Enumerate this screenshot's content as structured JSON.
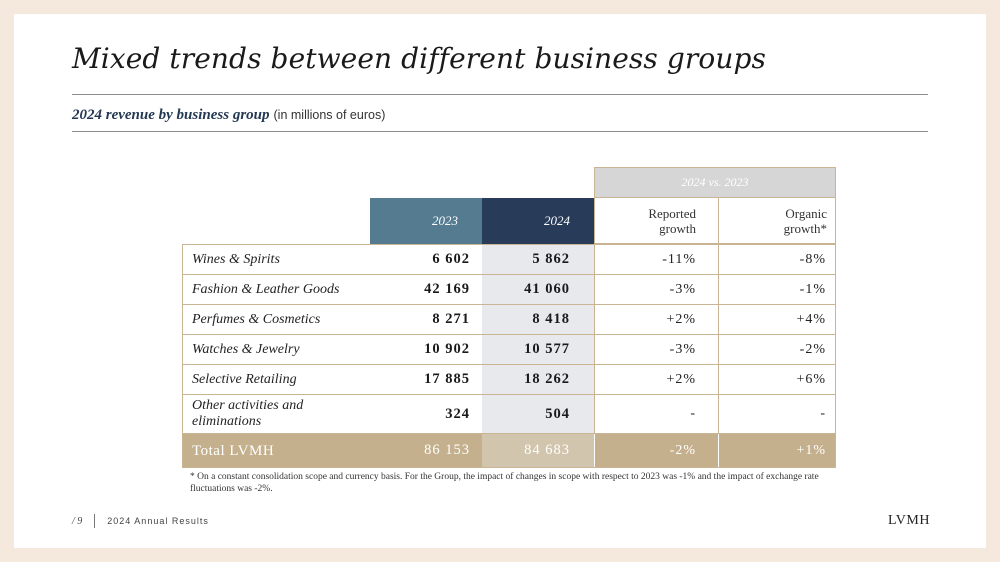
{
  "title": "Mixed trends between different business groups",
  "subtitle": {
    "bold": "2024 revenue by business group",
    "unit": "(in millions of euros)"
  },
  "table": {
    "group_header": "2024 vs. 2023",
    "headers": {
      "y2023": "2023",
      "y2024": "2024",
      "reported_line1": "Reported",
      "reported_line2": "growth",
      "organic_line1": "Organic",
      "organic_line2": "growth*"
    },
    "rows": [
      {
        "name": "Wines & Spirits",
        "v2023": "6 602",
        "v2024": "5 862",
        "reported": "-11%",
        "organic": "-8%"
      },
      {
        "name": "Fashion & Leather Goods",
        "v2023": "42 169",
        "v2024": "41 060",
        "reported": "-3%",
        "organic": "-1%"
      },
      {
        "name": "Perfumes & Cosmetics",
        "v2023": "8 271",
        "v2024": "8 418",
        "reported": "+2%",
        "organic": "+4%"
      },
      {
        "name": "Watches & Jewelry",
        "v2023": "10 902",
        "v2024": "10 577",
        "reported": "-3%",
        "organic": "-2%"
      },
      {
        "name": "Selective Retailing",
        "v2023": "17 885",
        "v2024": "18 262",
        "reported": "+2%",
        "organic": "+6%"
      },
      {
        "name": "Other activities and eliminations",
        "v2023": "324",
        "v2024": "504",
        "reported": "-",
        "organic": "-"
      }
    ],
    "total": {
      "name": "Total LVMH",
      "v2023": "86 153",
      "v2024": "84 683",
      "reported": "-2%",
      "organic": "+1%"
    }
  },
  "footnote": "* On a constant consolidation scope and currency basis. For the Group, the impact of changes in scope with respect to 2023 was -1% and the impact of exchange rate fluctuations was -2%.",
  "footer": {
    "page": "/ 9",
    "doc": "2024 Annual Results",
    "logo": "LVMH"
  },
  "colors": {
    "background": "#f5e9de",
    "header_2023": "#557b91",
    "header_2024": "#283c5a",
    "total_row": "#c5b08e",
    "border": "#c9b594",
    "group_header": "#d6d6d6"
  }
}
